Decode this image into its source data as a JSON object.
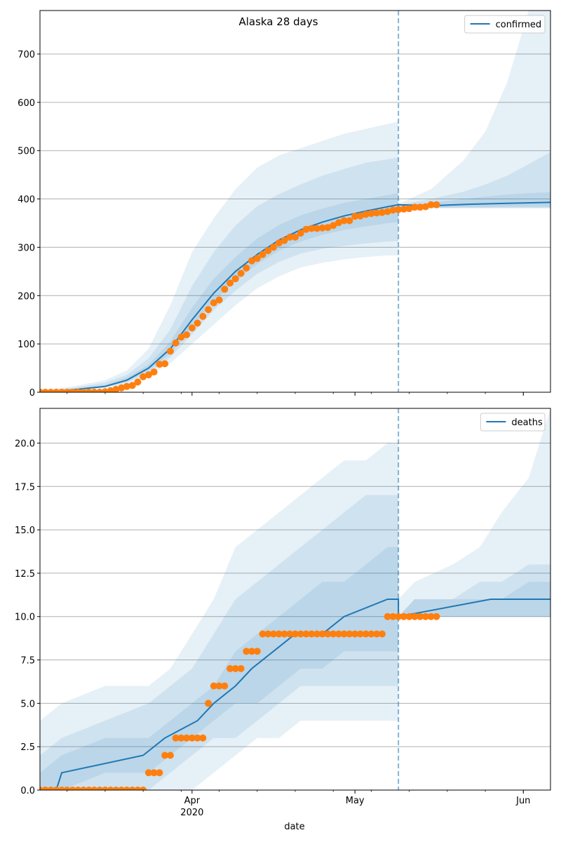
{
  "title": "Alaska 28 days",
  "xlabel": "date",
  "x_ticks": [
    {
      "date": "2020-04-01",
      "label": "Apr",
      "sublabel": "2020"
    },
    {
      "date": "2020-05-01",
      "label": "May",
      "sublabel": ""
    },
    {
      "date": "2020-06-01",
      "label": "Jun",
      "sublabel": ""
    }
  ],
  "colors": {
    "line": "#1f77b4",
    "points": "#ff7f0e",
    "band": "#1f77b4",
    "grid": "#b0b0b0"
  },
  "chart_data": [
    {
      "type": "line",
      "legend": "confirmed",
      "legend_loc": "top-right",
      "grid": "y",
      "xlim": [
        "2020-03-04",
        "2020-06-06"
      ],
      "ylim": [
        0,
        790
      ],
      "yticks": [
        0,
        100,
        200,
        300,
        400,
        500,
        600,
        700
      ],
      "ytick_labels": [
        "0",
        "100",
        "200",
        "300",
        "400",
        "500",
        "600",
        "700"
      ],
      "forecast_start": "2020-05-09",
      "model_curve": {
        "x": [
          "2020-03-04",
          "2020-03-10",
          "2020-03-16",
          "2020-03-20",
          "2020-03-24",
          "2020-03-28",
          "2020-04-01",
          "2020-04-05",
          "2020-04-09",
          "2020-04-13",
          "2020-04-17",
          "2020-04-21",
          "2020-04-25",
          "2020-04-29",
          "2020-05-03",
          "2020-05-07",
          "2020-05-09",
          "2020-05-15",
          "2020-05-22",
          "2020-05-29",
          "2020-06-06"
        ],
        "y": [
          0,
          5,
          12,
          25,
          50,
          90,
          150,
          205,
          250,
          285,
          315,
          336,
          352,
          365,
          375,
          384,
          388,
          386,
          389,
          391,
          393
        ]
      },
      "bands": [
        {
          "x": [
            "2020-03-04",
            "2020-03-10",
            "2020-03-16",
            "2020-03-20",
            "2020-03-24",
            "2020-03-28",
            "2020-04-01",
            "2020-04-05",
            "2020-04-09",
            "2020-04-13",
            "2020-04-17",
            "2020-04-21",
            "2020-04-25",
            "2020-04-29",
            "2020-05-03",
            "2020-05-07",
            "2020-05-09"
          ],
          "lower": [
            0,
            3,
            8,
            16,
            35,
            60,
            100,
            140,
            180,
            215,
            240,
            258,
            268,
            275,
            280,
            283,
            283
          ],
          "upper": [
            3,
            12,
            25,
            45,
            90,
            180,
            290,
            360,
            420,
            465,
            490,
            505,
            520,
            535,
            545,
            555,
            560
          ]
        },
        {
          "x": [
            "2020-03-04",
            "2020-03-10",
            "2020-03-16",
            "2020-03-20",
            "2020-03-24",
            "2020-03-28",
            "2020-04-01",
            "2020-04-05",
            "2020-04-09",
            "2020-04-13",
            "2020-04-17",
            "2020-04-21",
            "2020-04-25",
            "2020-04-29",
            "2020-05-03",
            "2020-05-07",
            "2020-05-09"
          ],
          "lower": [
            0,
            4,
            10,
            20,
            40,
            72,
            120,
            170,
            210,
            245,
            270,
            287,
            297,
            303,
            308,
            312,
            313
          ],
          "upper": [
            2,
            9,
            20,
            36,
            70,
            130,
            220,
            290,
            345,
            385,
            410,
            430,
            448,
            462,
            475,
            482,
            486
          ]
        },
        {
          "x": [
            "2020-03-04",
            "2020-03-10",
            "2020-03-16",
            "2020-03-20",
            "2020-03-24",
            "2020-03-28",
            "2020-04-01",
            "2020-04-05",
            "2020-04-09",
            "2020-04-13",
            "2020-04-17",
            "2020-04-21",
            "2020-04-25",
            "2020-04-29",
            "2020-05-03",
            "2020-05-07",
            "2020-05-09"
          ],
          "lower": [
            0,
            4,
            11,
            22,
            45,
            80,
            135,
            188,
            230,
            265,
            293,
            312,
            326,
            336,
            343,
            350,
            352
          ],
          "upper": [
            1,
            7,
            15,
            30,
            57,
            105,
            175,
            235,
            280,
            318,
            346,
            366,
            380,
            392,
            400,
            408,
            412
          ]
        },
        {
          "x": [
            "2020-05-09",
            "2020-05-15",
            "2020-05-21",
            "2020-05-25",
            "2020-05-29",
            "2020-06-02",
            "2020-06-06"
          ],
          "lower": [
            382,
            381,
            381,
            381,
            381,
            381,
            381
          ],
          "upper": [
            390,
            420,
            480,
            540,
            640,
            790,
            790
          ]
        },
        {
          "x": [
            "2020-05-09",
            "2020-05-15",
            "2020-05-21",
            "2020-05-25",
            "2020-05-29",
            "2020-06-02",
            "2020-06-06"
          ],
          "lower": [
            382,
            381,
            381,
            381,
            381,
            381,
            381
          ],
          "upper": [
            388,
            400,
            415,
            430,
            448,
            472,
            497
          ]
        },
        {
          "x": [
            "2020-05-09",
            "2020-05-15",
            "2020-05-21",
            "2020-05-25",
            "2020-05-29",
            "2020-06-02",
            "2020-06-06"
          ],
          "lower": [
            382,
            382,
            383,
            383,
            384,
            384,
            384
          ],
          "upper": [
            386,
            392,
            400,
            405,
            409,
            412,
            414
          ]
        }
      ],
      "observed": {
        "x": [
          "2020-03-04",
          "2020-03-05",
          "2020-03-06",
          "2020-03-07",
          "2020-03-08",
          "2020-03-09",
          "2020-03-10",
          "2020-03-11",
          "2020-03-12",
          "2020-03-13",
          "2020-03-14",
          "2020-03-15",
          "2020-03-16",
          "2020-03-17",
          "2020-03-18",
          "2020-03-19",
          "2020-03-20",
          "2020-03-21",
          "2020-03-22",
          "2020-03-23",
          "2020-03-24",
          "2020-03-25",
          "2020-03-26",
          "2020-03-27",
          "2020-03-28",
          "2020-03-29",
          "2020-03-30",
          "2020-03-31",
          "2020-04-01",
          "2020-04-02",
          "2020-04-03",
          "2020-04-04",
          "2020-04-05",
          "2020-04-06",
          "2020-04-07",
          "2020-04-08",
          "2020-04-09",
          "2020-04-10",
          "2020-04-11",
          "2020-04-12",
          "2020-04-13",
          "2020-04-14",
          "2020-04-15",
          "2020-04-16",
          "2020-04-17",
          "2020-04-18",
          "2020-04-19",
          "2020-04-20",
          "2020-04-21",
          "2020-04-22",
          "2020-04-23",
          "2020-04-24",
          "2020-04-25",
          "2020-04-26",
          "2020-04-27",
          "2020-04-28",
          "2020-04-29",
          "2020-04-30",
          "2020-05-01",
          "2020-05-02",
          "2020-05-03",
          "2020-05-04",
          "2020-05-05",
          "2020-05-06",
          "2020-05-07",
          "2020-05-08",
          "2020-05-09",
          "2020-05-10",
          "2020-05-11",
          "2020-05-12",
          "2020-05-13",
          "2020-05-14",
          "2020-05-15",
          "2020-05-16"
        ],
        "y": [
          0,
          0,
          0,
          0,
          0,
          0,
          0,
          0,
          0,
          0,
          0,
          0,
          1,
          3,
          6,
          9,
          12,
          14,
          21,
          32,
          36,
          42,
          58,
          59,
          85,
          102,
          114,
          119,
          133,
          143,
          157,
          171,
          185,
          191,
          213,
          226,
          235,
          246,
          257,
          272,
          277,
          285,
          293,
          300,
          309,
          314,
          321,
          321,
          329,
          337,
          339,
          339,
          340,
          341,
          345,
          351,
          355,
          355,
          364,
          365,
          368,
          370,
          371,
          372,
          374,
          377,
          378,
          379,
          380,
          383,
          383,
          384,
          388,
          388
        ]
      }
    },
    {
      "type": "line",
      "legend": "deaths",
      "legend_loc": "top-right",
      "grid": "y",
      "xlim": [
        "2020-03-04",
        "2020-06-06"
      ],
      "ylim": [
        0,
        22
      ],
      "yticks": [
        0,
        2.5,
        5,
        7.5,
        10,
        12.5,
        15,
        17.5,
        20
      ],
      "ytick_labels": [
        "0.0",
        "2.5",
        "5.0",
        "7.5",
        "10.0",
        "12.5",
        "15.0",
        "17.5",
        "20.0"
      ],
      "forecast_start": "2020-05-09",
      "model_curve": {
        "x": [
          "2020-03-04",
          "2020-03-07",
          "2020-03-08",
          "2020-03-23",
          "2020-03-27",
          "2020-04-02",
          "2020-04-05",
          "2020-04-09",
          "2020-04-12",
          "2020-04-16",
          "2020-04-20",
          "2020-04-25",
          "2020-04-29",
          "2020-05-07",
          "2020-05-09",
          "2020-05-09",
          "2020-05-26",
          "2020-06-06"
        ],
        "y": [
          0,
          0,
          1,
          2,
          3,
          4,
          5,
          6,
          7,
          8,
          9,
          9,
          10,
          11,
          11,
          10,
          11,
          11
        ]
      },
      "bands": [
        {
          "x": [
            "2020-03-04",
            "2020-03-08",
            "2020-03-16",
            "2020-03-24",
            "2020-03-28",
            "2020-04-01",
            "2020-04-05",
            "2020-04-09",
            "2020-04-13",
            "2020-04-17",
            "2020-04-21",
            "2020-04-25",
            "2020-04-29",
            "2020-05-03",
            "2020-05-07",
            "2020-05-09"
          ],
          "lower": [
            0,
            0,
            0,
            0,
            0,
            0,
            1,
            2,
            3,
            3,
            4,
            4,
            4,
            4,
            4,
            4
          ],
          "upper": [
            4,
            5,
            6,
            6,
            7,
            9,
            11,
            14,
            15,
            16,
            17,
            18,
            19,
            19,
            20,
            20
          ]
        },
        {
          "x": [
            "2020-03-04",
            "2020-03-08",
            "2020-03-16",
            "2020-03-24",
            "2020-03-28",
            "2020-04-01",
            "2020-04-05",
            "2020-04-09",
            "2020-04-13",
            "2020-04-17",
            "2020-04-21",
            "2020-04-25",
            "2020-04-29",
            "2020-05-03",
            "2020-05-07",
            "2020-05-09"
          ],
          "lower": [
            0,
            0,
            0,
            0,
            1,
            2,
            3,
            3,
            4,
            5,
            6,
            6,
            6,
            6,
            6,
            6
          ],
          "upper": [
            2,
            3,
            4,
            5,
            6,
            7,
            9,
            11,
            12,
            13,
            14,
            15,
            16,
            17,
            17,
            17
          ]
        },
        {
          "x": [
            "2020-03-04",
            "2020-03-08",
            "2020-03-16",
            "2020-03-24",
            "2020-03-28",
            "2020-04-01",
            "2020-04-05",
            "2020-04-09",
            "2020-04-13",
            "2020-04-17",
            "2020-04-21",
            "2020-04-25",
            "2020-04-29",
            "2020-05-03",
            "2020-05-07",
            "2020-05-09"
          ],
          "lower": [
            0,
            0,
            1,
            1,
            2,
            3,
            4,
            5,
            5,
            6,
            7,
            7,
            8,
            8,
            8,
            8
          ],
          "upper": [
            1,
            2,
            3,
            3,
            4,
            5,
            6,
            8,
            9,
            10,
            11,
            12,
            12,
            13,
            14,
            14
          ]
        },
        {
          "x": [
            "2020-05-09",
            "2020-05-12",
            "2020-05-19",
            "2020-05-24",
            "2020-05-28",
            "2020-06-02",
            "2020-06-06"
          ],
          "lower": [
            10,
            10,
            10,
            10,
            10,
            10,
            10
          ],
          "upper": [
            11,
            12,
            13,
            14,
            16,
            18,
            22
          ]
        },
        {
          "x": [
            "2020-05-09",
            "2020-05-12",
            "2020-05-19",
            "2020-05-24",
            "2020-05-28",
            "2020-06-02",
            "2020-06-06"
          ],
          "lower": [
            10,
            10,
            10,
            10,
            10,
            10,
            10
          ],
          "upper": [
            10,
            11,
            11,
            12,
            12,
            13,
            13
          ]
        },
        {
          "x": [
            "2020-05-09",
            "2020-05-12",
            "2020-05-19",
            "2020-05-24",
            "2020-05-28",
            "2020-06-02",
            "2020-06-06"
          ],
          "lower": [
            10,
            10,
            10,
            10,
            10,
            10,
            10
          ],
          "upper": [
            10,
            11,
            11,
            11,
            11,
            12,
            12
          ]
        }
      ],
      "observed": {
        "x": [
          "2020-03-04",
          "2020-03-05",
          "2020-03-06",
          "2020-03-07",
          "2020-03-08",
          "2020-03-09",
          "2020-03-10",
          "2020-03-11",
          "2020-03-12",
          "2020-03-13",
          "2020-03-14",
          "2020-03-15",
          "2020-03-16",
          "2020-03-17",
          "2020-03-18",
          "2020-03-19",
          "2020-03-20",
          "2020-03-21",
          "2020-03-22",
          "2020-03-23",
          "2020-03-24",
          "2020-03-25",
          "2020-03-26",
          "2020-03-27",
          "2020-03-28",
          "2020-03-29",
          "2020-03-30",
          "2020-03-31",
          "2020-04-01",
          "2020-04-02",
          "2020-04-03",
          "2020-04-04",
          "2020-04-05",
          "2020-04-06",
          "2020-04-07",
          "2020-04-08",
          "2020-04-09",
          "2020-04-10",
          "2020-04-11",
          "2020-04-12",
          "2020-04-13",
          "2020-04-14",
          "2020-04-15",
          "2020-04-16",
          "2020-04-17",
          "2020-04-18",
          "2020-04-19",
          "2020-04-20",
          "2020-04-21",
          "2020-04-22",
          "2020-04-23",
          "2020-04-24",
          "2020-04-25",
          "2020-04-26",
          "2020-04-27",
          "2020-04-28",
          "2020-04-29",
          "2020-04-30",
          "2020-05-01",
          "2020-05-02",
          "2020-05-03",
          "2020-05-04",
          "2020-05-05",
          "2020-05-06",
          "2020-05-07",
          "2020-05-08",
          "2020-05-09",
          "2020-05-10",
          "2020-05-11",
          "2020-05-12",
          "2020-05-13",
          "2020-05-14",
          "2020-05-15",
          "2020-05-16"
        ],
        "y": [
          0,
          0,
          0,
          0,
          0,
          0,
          0,
          0,
          0,
          0,
          0,
          0,
          0,
          0,
          0,
          0,
          0,
          0,
          0,
          0,
          1,
          1,
          1,
          2,
          2,
          3,
          3,
          3,
          3,
          3,
          3,
          5,
          6,
          6,
          6,
          7,
          7,
          7,
          8,
          8,
          8,
          9,
          9,
          9,
          9,
          9,
          9,
          9,
          9,
          9,
          9,
          9,
          9,
          9,
          9,
          9,
          9,
          9,
          9,
          9,
          9,
          9,
          9,
          9,
          10,
          10,
          10,
          10,
          10,
          10,
          10,
          10,
          10,
          10
        ]
      }
    }
  ]
}
